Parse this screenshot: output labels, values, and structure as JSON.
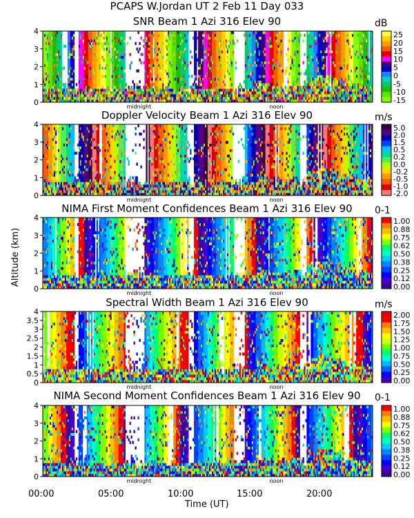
{
  "figure": {
    "title": "PCAPS W.Jordan UT   2 Feb 11 Day 033",
    "ylabel": "Altitude (km)",
    "xlabel": "Time (UT)",
    "xticks": [
      "00:00",
      "05:00",
      "10:00",
      "15:00",
      "20:00"
    ],
    "markers": [
      "midnight",
      "noon"
    ]
  },
  "colors": {
    "snr": [
      "#7fff00",
      "#62e000",
      "#22bb00",
      "#00cc66",
      "#00d0c8",
      "#2080ff",
      "#0000cc",
      "#3d007a",
      "#ff00ff",
      "#e00000",
      "#ff5a00",
      "#ff9a00",
      "#ffd000",
      "#ffff40"
    ],
    "vel": [
      "#ff7777",
      "#e00000",
      "#ff5a00",
      "#ff9a00",
      "#ffd700",
      "#b4ff00",
      "#55ee55",
      "#00dd99",
      "#00c0ff",
      "#0040ff",
      "#0000b0",
      "#550088",
      "#3a003a"
    ],
    "conf": [
      "#3d0099",
      "#4400cc",
      "#0000ff",
      "#0044ff",
      "#0088ff",
      "#00ccff",
      "#00ffc0",
      "#00ff66",
      "#80ff00",
      "#ffff00",
      "#ffc000",
      "#ff8000",
      "#ff0000"
    ],
    "sw": [
      "#4400bb",
      "#0000ff",
      "#0066ff",
      "#00bbff",
      "#00ffcc",
      "#00ff77",
      "#66ff00",
      "#ccff00",
      "#ffff00",
      "#ffc000",
      "#ff8000",
      "#ff0000",
      "#e80000"
    ]
  },
  "chart_data": [
    {
      "type": "heatmap",
      "title": "SNR Beam 1 Azi 316 Elev 90",
      "unit": "dB",
      "xlim": [
        0,
        24
      ],
      "ylim": [
        0,
        4
      ],
      "yticks": [
        0,
        1,
        2,
        3,
        4
      ],
      "colorbar": [
        "25",
        "20",
        "15",
        "10",
        "5",
        "0",
        "-5",
        "-10",
        "-15"
      ],
      "palette": "snr"
    },
    {
      "type": "heatmap",
      "title": "Doppler Velocity Beam 1 Azi 316 Elev 90",
      "unit": "m/s",
      "xlim": [
        0,
        24
      ],
      "ylim": [
        0,
        4
      ],
      "yticks": [
        0,
        1,
        2,
        3,
        4
      ],
      "colorbar": [
        "5.0",
        "2.0",
        "1.5",
        "0.5",
        "0.2",
        "0.0",
        "-0.2",
        "-0.5",
        "-1.0",
        "-2.0"
      ],
      "palette": "vel"
    },
    {
      "type": "heatmap",
      "title": "NIMA First Moment Confidences Beam 1 Azi 316 Elev 90",
      "unit": "0-1",
      "xlim": [
        0,
        24
      ],
      "ylim": [
        0,
        4
      ],
      "yticks": [
        0,
        1,
        2,
        3,
        4
      ],
      "colorbar": [
        "1.00",
        "0.88",
        "0.75",
        "0.62",
        "0.50",
        "0.38",
        "0.25",
        "0.12",
        "0.00"
      ],
      "palette": "conf"
    },
    {
      "type": "heatmap",
      "title": "Spectral Width Beam 1 Azi 316 Elev 90",
      "unit": "m/s",
      "xlim": [
        0,
        24
      ],
      "ylim": [
        0,
        4
      ],
      "yticks": [
        0,
        0.5,
        1,
        1.5,
        2,
        2.5,
        3,
        3.5,
        4
      ],
      "colorbar": [
        "2.00",
        "1.75",
        "1.50",
        "1.25",
        "1.00",
        "0.75",
        "0.50",
        "0.25",
        "0.00"
      ],
      "palette": "sw"
    },
    {
      "type": "heatmap",
      "title": "NIMA Second Moment Confidences Beam 1 Azi 316 Elev 90",
      "unit": "0-1",
      "xlim": [
        0,
        24
      ],
      "ylim": [
        0,
        4
      ],
      "yticks": [
        0,
        1,
        2,
        3,
        4
      ],
      "colorbar": [
        "1.00",
        "0.88",
        "0.75",
        "0.62",
        "0.50",
        "0.38",
        "0.25",
        "0.12",
        "0.00"
      ],
      "palette": "conf"
    }
  ]
}
